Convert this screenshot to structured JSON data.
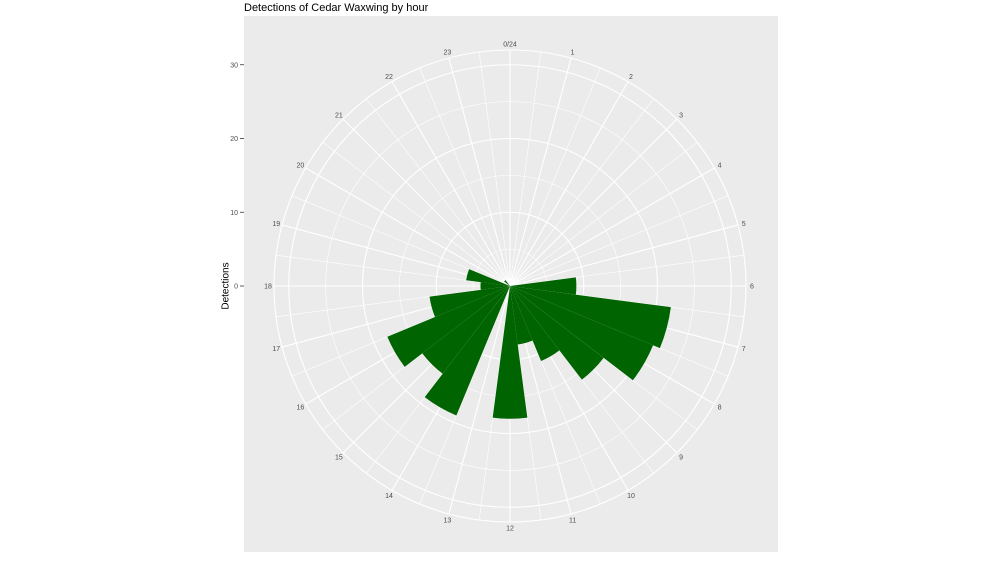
{
  "chart_data": {
    "type": "bar",
    "coord": "polar",
    "title": "Detections of Cedar Waxwing by hour",
    "ylabel": "Detections",
    "xlabel": "",
    "categories": [
      "0/24",
      "1",
      "2",
      "3",
      "4",
      "5",
      "6",
      "7",
      "8",
      "9",
      "10",
      "11",
      "12",
      "13",
      "14",
      "15",
      "16",
      "17",
      "18",
      "19",
      "20",
      "21",
      "22",
      "23"
    ],
    "values": [
      0,
      0,
      0,
      0,
      0,
      0,
      9,
      22,
      21,
      16,
      11,
      8,
      18,
      0,
      19,
      15,
      18,
      11,
      4,
      6,
      0,
      1,
      0,
      0
    ],
    "ylim": [
      0,
      32
    ],
    "yticks": [
      0,
      10,
      20,
      30
    ],
    "bar_color": "#006400",
    "panel_background": "#ebebeb",
    "grid": true,
    "legend": "none"
  }
}
